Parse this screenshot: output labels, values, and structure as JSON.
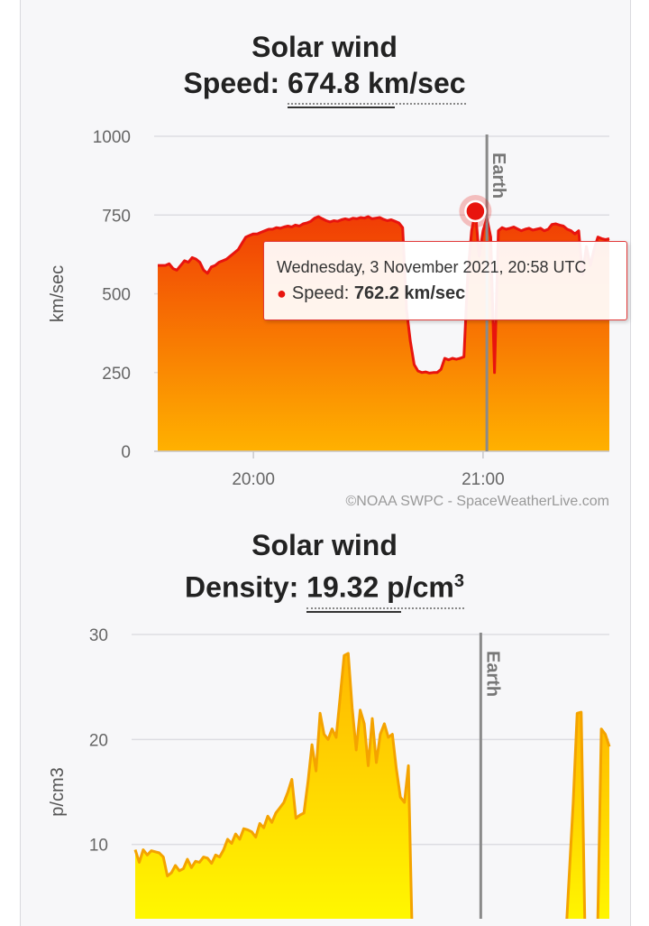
{
  "charts": {
    "speed": {
      "title": "Solar wind",
      "metric_label": "Speed:",
      "metric_value": "674.8 km/sec",
      "credit": "©NOAA SWPC - SpaceWeatherLive.com",
      "tooltip": {
        "date": "Wednesday, 3 November 2021, 20:58 UTC",
        "series_label": "Speed:",
        "value": "762.2 km/sec"
      }
    },
    "density": {
      "title": "Solar wind",
      "metric_label": "Density:",
      "metric_value": "19.32 p/cm",
      "metric_sup": "3"
    }
  },
  "colors": {
    "speed_line": "#e8140e",
    "speed_fill_top": "#f03a05",
    "speed_fill_bottom": "#ffb100",
    "density_line": "#f4a300",
    "density_fill_top": "#ffb700",
    "density_fill_bottom": "#ffff00",
    "marker": "#e8140e",
    "earth_line": "#8a8a8a"
  },
  "chart_data": [
    {
      "type": "area",
      "ylabel": "km/sec",
      "ylim": [
        0,
        1000
      ],
      "yticks": [
        0,
        250,
        500,
        750,
        1000
      ],
      "xlim": [
        "19:35",
        "21:33"
      ],
      "xticks": [
        {
          "t": "20:00",
          "label": "20:00"
        },
        {
          "t": "21:00",
          "label": "21:00"
        }
      ],
      "grid": true,
      "marker_line": {
        "t": "21:01",
        "label": "Earth"
      },
      "highlight": {
        "t": "20:58",
        "value": 762.2
      },
      "series": [
        {
          "values": [
            [
              "19:35",
              590
            ],
            [
              "19:37",
              590
            ],
            [
              "19:38",
              595
            ],
            [
              "19:39",
              580
            ],
            [
              "19:40",
              575
            ],
            [
              "19:41",
              590
            ],
            [
              "19:42",
              605
            ],
            [
              "19:43",
              600
            ],
            [
              "19:44",
              615
            ],
            [
              "19:45",
              610
            ],
            [
              "19:46",
              600
            ],
            [
              "19:47",
              575
            ],
            [
              "19:48",
              565
            ],
            [
              "19:49",
              585
            ],
            [
              "19:50",
              590
            ],
            [
              "19:51",
              600
            ],
            [
              "19:52",
              605
            ],
            [
              "19:53",
              610
            ],
            [
              "19:54",
              620
            ],
            [
              "19:55",
              630
            ],
            [
              "19:56",
              640
            ],
            [
              "19:57",
              660
            ],
            [
              "19:58",
              680
            ],
            [
              "19:59",
              685
            ],
            [
              "20:00",
              690
            ],
            [
              "20:01",
              690
            ],
            [
              "20:02",
              695
            ],
            [
              "20:03",
              700
            ],
            [
              "20:04",
              705
            ],
            [
              "20:05",
              705
            ],
            [
              "20:06",
              710
            ],
            [
              "20:07",
              708
            ],
            [
              "20:08",
              712
            ],
            [
              "20:09",
              715
            ],
            [
              "20:10",
              712
            ],
            [
              "20:11",
              718
            ],
            [
              "20:12",
              715
            ],
            [
              "20:13",
              722
            ],
            [
              "20:14",
              725
            ],
            [
              "20:15",
              730
            ],
            [
              "20:16",
              740
            ],
            [
              "20:17",
              745
            ],
            [
              "20:18",
              738
            ],
            [
              "20:19",
              732
            ],
            [
              "20:20",
              728
            ],
            [
              "20:21",
              732
            ],
            [
              "20:22",
              730
            ],
            [
              "20:23",
              735
            ],
            [
              "20:24",
              738
            ],
            [
              "20:25",
              735
            ],
            [
              "20:26",
              740
            ],
            [
              "20:27",
              738
            ],
            [
              "20:28",
              742
            ],
            [
              "20:29",
              740
            ],
            [
              "20:30",
              745
            ],
            [
              "20:31",
              738
            ],
            [
              "20:32",
              740
            ],
            [
              "20:33",
              742
            ],
            [
              "20:34",
              736
            ],
            [
              "20:35",
              732
            ],
            [
              "20:36",
              735
            ],
            [
              "20:37",
              730
            ],
            [
              "20:38",
              725
            ],
            [
              "20:39",
              710
            ],
            [
              "20:40",
              450
            ],
            [
              "20:41",
              350
            ],
            [
              "20:42",
              275
            ],
            [
              "20:43",
              255
            ],
            [
              "20:44",
              250
            ],
            [
              "20:45",
              252
            ],
            [
              "20:46",
              248
            ],
            [
              "20:47",
              250
            ],
            [
              "20:48",
              250
            ],
            [
              "20:49",
              260
            ],
            [
              "20:50",
              295
            ],
            [
              "20:51",
              290
            ],
            [
              "20:52",
              295
            ],
            [
              "20:53",
              292
            ],
            [
              "20:54",
              295
            ],
            [
              "20:55",
              300
            ],
            [
              "20:56",
              560
            ],
            [
              "20:57",
              700
            ],
            [
              "20:58",
              762.2
            ],
            [
              "20:59",
              620
            ],
            [
              "21:00",
              700
            ],
            [
              "21:01",
              740
            ],
            [
              "21:02",
              680
            ],
            [
              "21:03",
              250
            ],
            [
              "21:04",
              700
            ],
            [
              "21:05",
              710
            ],
            [
              "21:06",
              705
            ],
            [
              "21:07",
              708
            ],
            [
              "21:08",
              712
            ],
            [
              "21:09",
              706
            ],
            [
              "21:10",
              700
            ],
            [
              "21:11",
              705
            ],
            [
              "21:12",
              708
            ],
            [
              "21:13",
              702
            ],
            [
              "21:14",
              705
            ],
            [
              "21:15",
              708
            ],
            [
              "21:16",
              700
            ],
            [
              "21:17",
              705
            ],
            [
              "21:18",
              720
            ],
            [
              "21:19",
              722
            ],
            [
              "21:20",
              718
            ],
            [
              "21:21",
              715
            ],
            [
              "21:22",
              705
            ],
            [
              "21:23",
              700
            ],
            [
              "21:24",
              690
            ],
            [
              "21:25",
              700
            ],
            [
              "21:26",
              560
            ],
            [
              "21:27",
              650
            ],
            [
              "21:28",
              590
            ],
            [
              "21:29",
              640
            ],
            [
              "21:30",
              680
            ],
            [
              "21:31",
              675
            ],
            [
              "21:32",
              672
            ],
            [
              "21:33",
              674.8
            ]
          ]
        }
      ]
    },
    {
      "type": "area",
      "ylabel": "p/cm3",
      "ylim": [
        0,
        30
      ],
      "yticks": [
        10,
        20,
        30
      ],
      "xlim": [
        "19:35",
        "21:33"
      ],
      "grid": true,
      "marker_line": {
        "t": "21:01",
        "label": "Earth"
      },
      "series": [
        {
          "segments": [
            [
              [
                "19:35",
                9.5
              ],
              [
                "19:36",
                8.3
              ],
              [
                "19:37",
                9.5
              ],
              [
                "19:38",
                9.0
              ],
              [
                "19:39",
                9.4
              ],
              [
                "19:40",
                9.3
              ],
              [
                "19:41",
                9.2
              ],
              [
                "19:42",
                8.8
              ],
              [
                "19:43",
                7.0
              ],
              [
                "19:44",
                7.3
              ],
              [
                "19:45",
                8.0
              ],
              [
                "19:46",
                7.5
              ],
              [
                "19:47",
                7.7
              ],
              [
                "19:48",
                8.6
              ],
              [
                "19:49",
                7.8
              ],
              [
                "19:50",
                8.4
              ],
              [
                "19:51",
                8.3
              ],
              [
                "19:52",
                8.8
              ],
              [
                "19:53",
                8.7
              ],
              [
                "19:54",
                8.2
              ],
              [
                "19:55",
                9.0
              ],
              [
                "19:56",
                8.8
              ],
              [
                "19:57",
                9.5
              ],
              [
                "19:58",
                10.5
              ],
              [
                "19:59",
                10.1
              ],
              [
                "20:00",
                11.0
              ],
              [
                "20:01",
                10.5
              ],
              [
                "20:02",
                11.5
              ],
              [
                "20:03",
                11.4
              ],
              [
                "20:04",
                11.2
              ],
              [
                "20:05",
                10.7
              ],
              [
                "20:06",
                12.0
              ],
              [
                "20:07",
                11.6
              ],
              [
                "20:08",
                12.7
              ],
              [
                "20:09",
                12.1
              ],
              [
                "20:10",
                13.0
              ],
              [
                "20:11",
                13.5
              ],
              [
                "20:12",
                14.0
              ],
              [
                "20:13",
                15.0
              ],
              [
                "20:14",
                16.2
              ],
              [
                "20:15",
                12.5
              ],
              [
                "20:16",
                12.8
              ],
              [
                "20:17",
                13.0
              ],
              [
                "20:18",
                16.0
              ],
              [
                "20:19",
                19.5
              ],
              [
                "20:20",
                17.0
              ],
              [
                "20:21",
                22.5
              ],
              [
                "20:22",
                20.5
              ],
              [
                "20:23",
                20.0
              ],
              [
                "20:24",
                21.0
              ],
              [
                "20:25",
                20.2
              ],
              [
                "20:26",
                24.0
              ],
              [
                "20:27",
                28.0
              ],
              [
                "20:28",
                28.2
              ],
              [
                "20:29",
                23.0
              ],
              [
                "20:30",
                19.0
              ],
              [
                "20:31",
                22.8
              ],
              [
                "20:32",
                21.5
              ],
              [
                "20:33",
                17.5
              ],
              [
                "20:34",
                22.0
              ],
              [
                "20:35",
                17.8
              ],
              [
                "20:36",
                20.5
              ],
              [
                "20:37",
                21.5
              ],
              [
                "20:38",
                20.2
              ],
              [
                "20:39",
                20.5
              ],
              [
                "20:40",
                17.2
              ],
              [
                "20:41",
                14.5
              ],
              [
                "20:42",
                14.0
              ],
              [
                "20:43",
                17.5
              ],
              [
                "20:44",
                0
              ]
            ],
            [
              [
                "21:22",
                0
              ],
              [
                "21:24",
                14.0
              ],
              [
                "21:25",
                22.5
              ],
              [
                "21:26",
                22.6
              ],
              [
                "21:27",
                0
              ],
              [
                "21:30",
                0
              ],
              [
                "21:31",
                21.0
              ],
              [
                "21:32",
                20.5
              ],
              [
                "21:33",
                19.32
              ]
            ]
          ]
        }
      ]
    }
  ]
}
